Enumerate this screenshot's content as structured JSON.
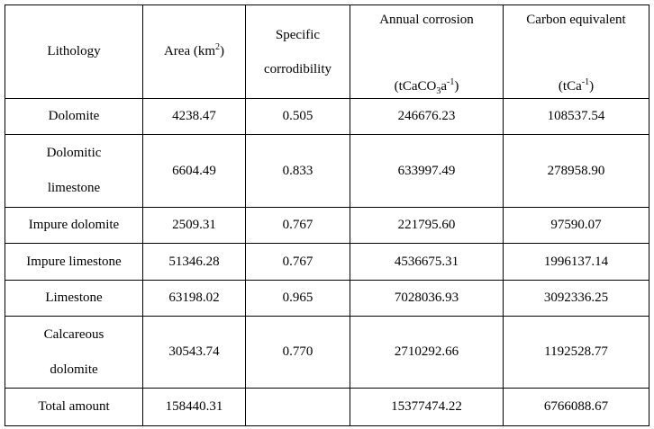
{
  "table": {
    "header": {
      "lithology": "Lithology",
      "area": "Area (km",
      "area_sup": "2",
      "area_close": ")",
      "specific_line1": "Specific",
      "specific_line2": "corrodibility",
      "annual_title": "Annual corrosion",
      "annual_unit_a": "(tCaCO",
      "annual_unit_sub": "3",
      "annual_unit_b": "a",
      "annual_unit_sup": "-1",
      "annual_unit_close": ")",
      "carbon_title": "Carbon equivalent",
      "carbon_unit_a": "(tCa",
      "carbon_unit_sup": "-1",
      "carbon_unit_close": ")"
    },
    "rows": [
      {
        "lithology": "Dolomite",
        "area": "4238.47",
        "specific": "0.505",
        "annual": "246676.23",
        "carbon": "108537.54"
      },
      {
        "lithology_line1": "Dolomitic",
        "lithology_line2": "limestone",
        "area": "6604.49",
        "specific": "0.833",
        "annual": "633997.49",
        "carbon": "278958.90"
      },
      {
        "lithology": "Impure dolomite",
        "area": "2509.31",
        "specific": "0.767",
        "annual": "221795.60",
        "carbon": "97590.07"
      },
      {
        "lithology": "Impure limestone",
        "area": "51346.28",
        "specific": "0.767",
        "annual": "4536675.31",
        "carbon": "1996137.14"
      },
      {
        "lithology": "Limestone",
        "area": "63198.02",
        "specific": "0.965",
        "annual": "7028036.93",
        "carbon": "3092336.25"
      },
      {
        "lithology_line1": "Calcareous",
        "lithology_line2": "dolomite",
        "area": "30543.74",
        "specific": "0.770",
        "annual": "2710292.66",
        "carbon": "1192528.77"
      }
    ],
    "total": {
      "label": "Total amount",
      "area": "158440.31",
      "specific": "",
      "annual": "15377474.22",
      "carbon": "6766088.67"
    }
  }
}
